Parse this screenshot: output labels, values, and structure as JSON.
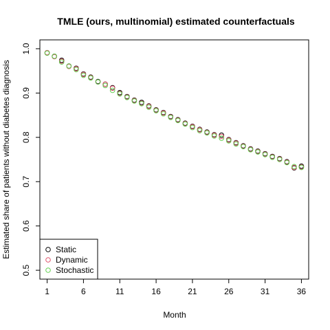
{
  "chart_data": {
    "type": "scatter",
    "title": "TMLE (ours, multinomial) estimated counterfactuals",
    "xlabel": "Month",
    "ylabel": "Estimated share of patients without diabetes diagnosis",
    "xlim": [
      0,
      37
    ],
    "ylim": [
      0.48,
      1.02
    ],
    "xticks": [
      1,
      6,
      11,
      16,
      21,
      26,
      31,
      36
    ],
    "yticks": [
      0.5,
      0.6,
      0.7,
      0.8,
      0.9,
      1.0
    ],
    "ytick_labels": [
      "0.5",
      "0.6",
      "0.7",
      "0.8",
      "0.9",
      "1.0"
    ],
    "grid": false,
    "legend_position": "bottom-left",
    "marker": "open-circle",
    "x": [
      1,
      2,
      3,
      4,
      5,
      6,
      7,
      8,
      9,
      10,
      11,
      12,
      13,
      14,
      15,
      16,
      17,
      18,
      19,
      20,
      21,
      22,
      23,
      24,
      25,
      26,
      27,
      28,
      29,
      30,
      31,
      32,
      33,
      34,
      35,
      36
    ],
    "series": [
      {
        "name": "Static",
        "color": "#000000",
        "values": [
          0.991,
          0.983,
          0.974,
          0.961,
          0.956,
          0.943,
          0.936,
          0.926,
          0.92,
          0.912,
          0.901,
          0.892,
          0.884,
          0.879,
          0.871,
          0.862,
          0.856,
          0.847,
          0.84,
          0.832,
          0.825,
          0.818,
          0.812,
          0.806,
          0.805,
          0.795,
          0.788,
          0.781,
          0.774,
          0.769,
          0.763,
          0.757,
          0.752,
          0.745,
          0.731,
          0.735
        ]
      },
      {
        "name": "Dynamic",
        "color": "#df536b",
        "values": [
          0.991,
          0.982,
          0.972,
          0.96,
          0.955,
          0.942,
          0.935,
          0.925,
          0.92,
          0.911,
          0.899,
          0.891,
          0.883,
          0.877,
          0.87,
          0.861,
          0.855,
          0.846,
          0.839,
          0.831,
          0.824,
          0.817,
          0.811,
          0.805,
          0.802,
          0.794,
          0.787,
          0.78,
          0.773,
          0.768,
          0.762,
          0.756,
          0.751,
          0.744,
          0.732,
          0.733
        ]
      },
      {
        "name": "Stochastic",
        "color": "#61d04f",
        "values": [
          0.99,
          0.983,
          0.97,
          0.961,
          0.953,
          0.94,
          0.934,
          0.925,
          0.917,
          0.906,
          0.898,
          0.89,
          0.882,
          0.876,
          0.868,
          0.86,
          0.853,
          0.845,
          0.838,
          0.83,
          0.822,
          0.815,
          0.81,
          0.803,
          0.798,
          0.792,
          0.785,
          0.779,
          0.772,
          0.767,
          0.761,
          0.755,
          0.75,
          0.743,
          0.734,
          0.732
        ]
      }
    ]
  }
}
